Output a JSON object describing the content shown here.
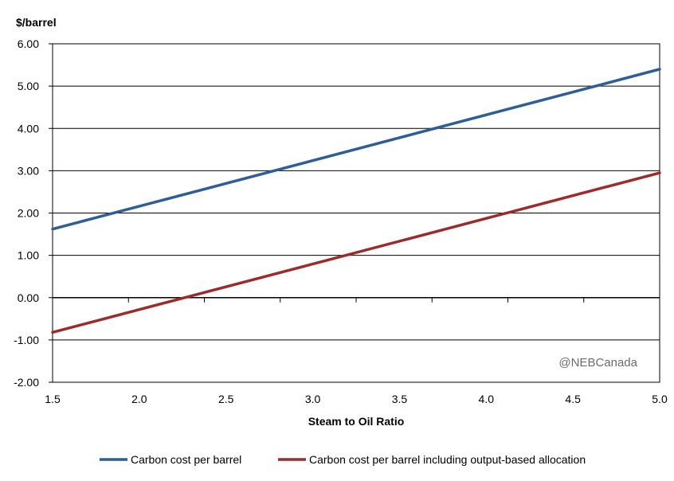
{
  "chart_data": {
    "type": "line",
    "title": "",
    "ylabel": "$/barrel",
    "xlabel": "Steam to Oil Ratio",
    "xlim": [
      1.5,
      5.0
    ],
    "ylim": [
      -2.0,
      6.0
    ],
    "x_ticks": [
      "1.5",
      "2.0",
      "2.5",
      "3.0",
      "3.5",
      "4.0",
      "4.5",
      "5.0"
    ],
    "x_tick_values": [
      1.5,
      2.0,
      2.5,
      3.0,
      3.5,
      4.0,
      4.5,
      5.0
    ],
    "y_ticks": [
      "-2.00",
      "-1.00",
      "0.00",
      "1.00",
      "2.00",
      "3.00",
      "4.00",
      "5.00",
      "6.00"
    ],
    "y_tick_values": [
      -2,
      -1,
      0,
      1,
      2,
      3,
      4,
      5,
      6
    ],
    "grid": "horizontal",
    "legend_position": "bottom",
    "annotation": "@NEBCanada",
    "series": [
      {
        "name": "Carbon cost per barrel",
        "color": "#2f5e96",
        "x": [
          1.5,
          5.0
        ],
        "values": [
          1.62,
          5.4
        ]
      },
      {
        "name": "Carbon cost per barrel including output-based allocation",
        "color": "#9c2c2c",
        "x": [
          1.5,
          5.0
        ],
        "values": [
          -0.82,
          2.95
        ]
      }
    ]
  }
}
